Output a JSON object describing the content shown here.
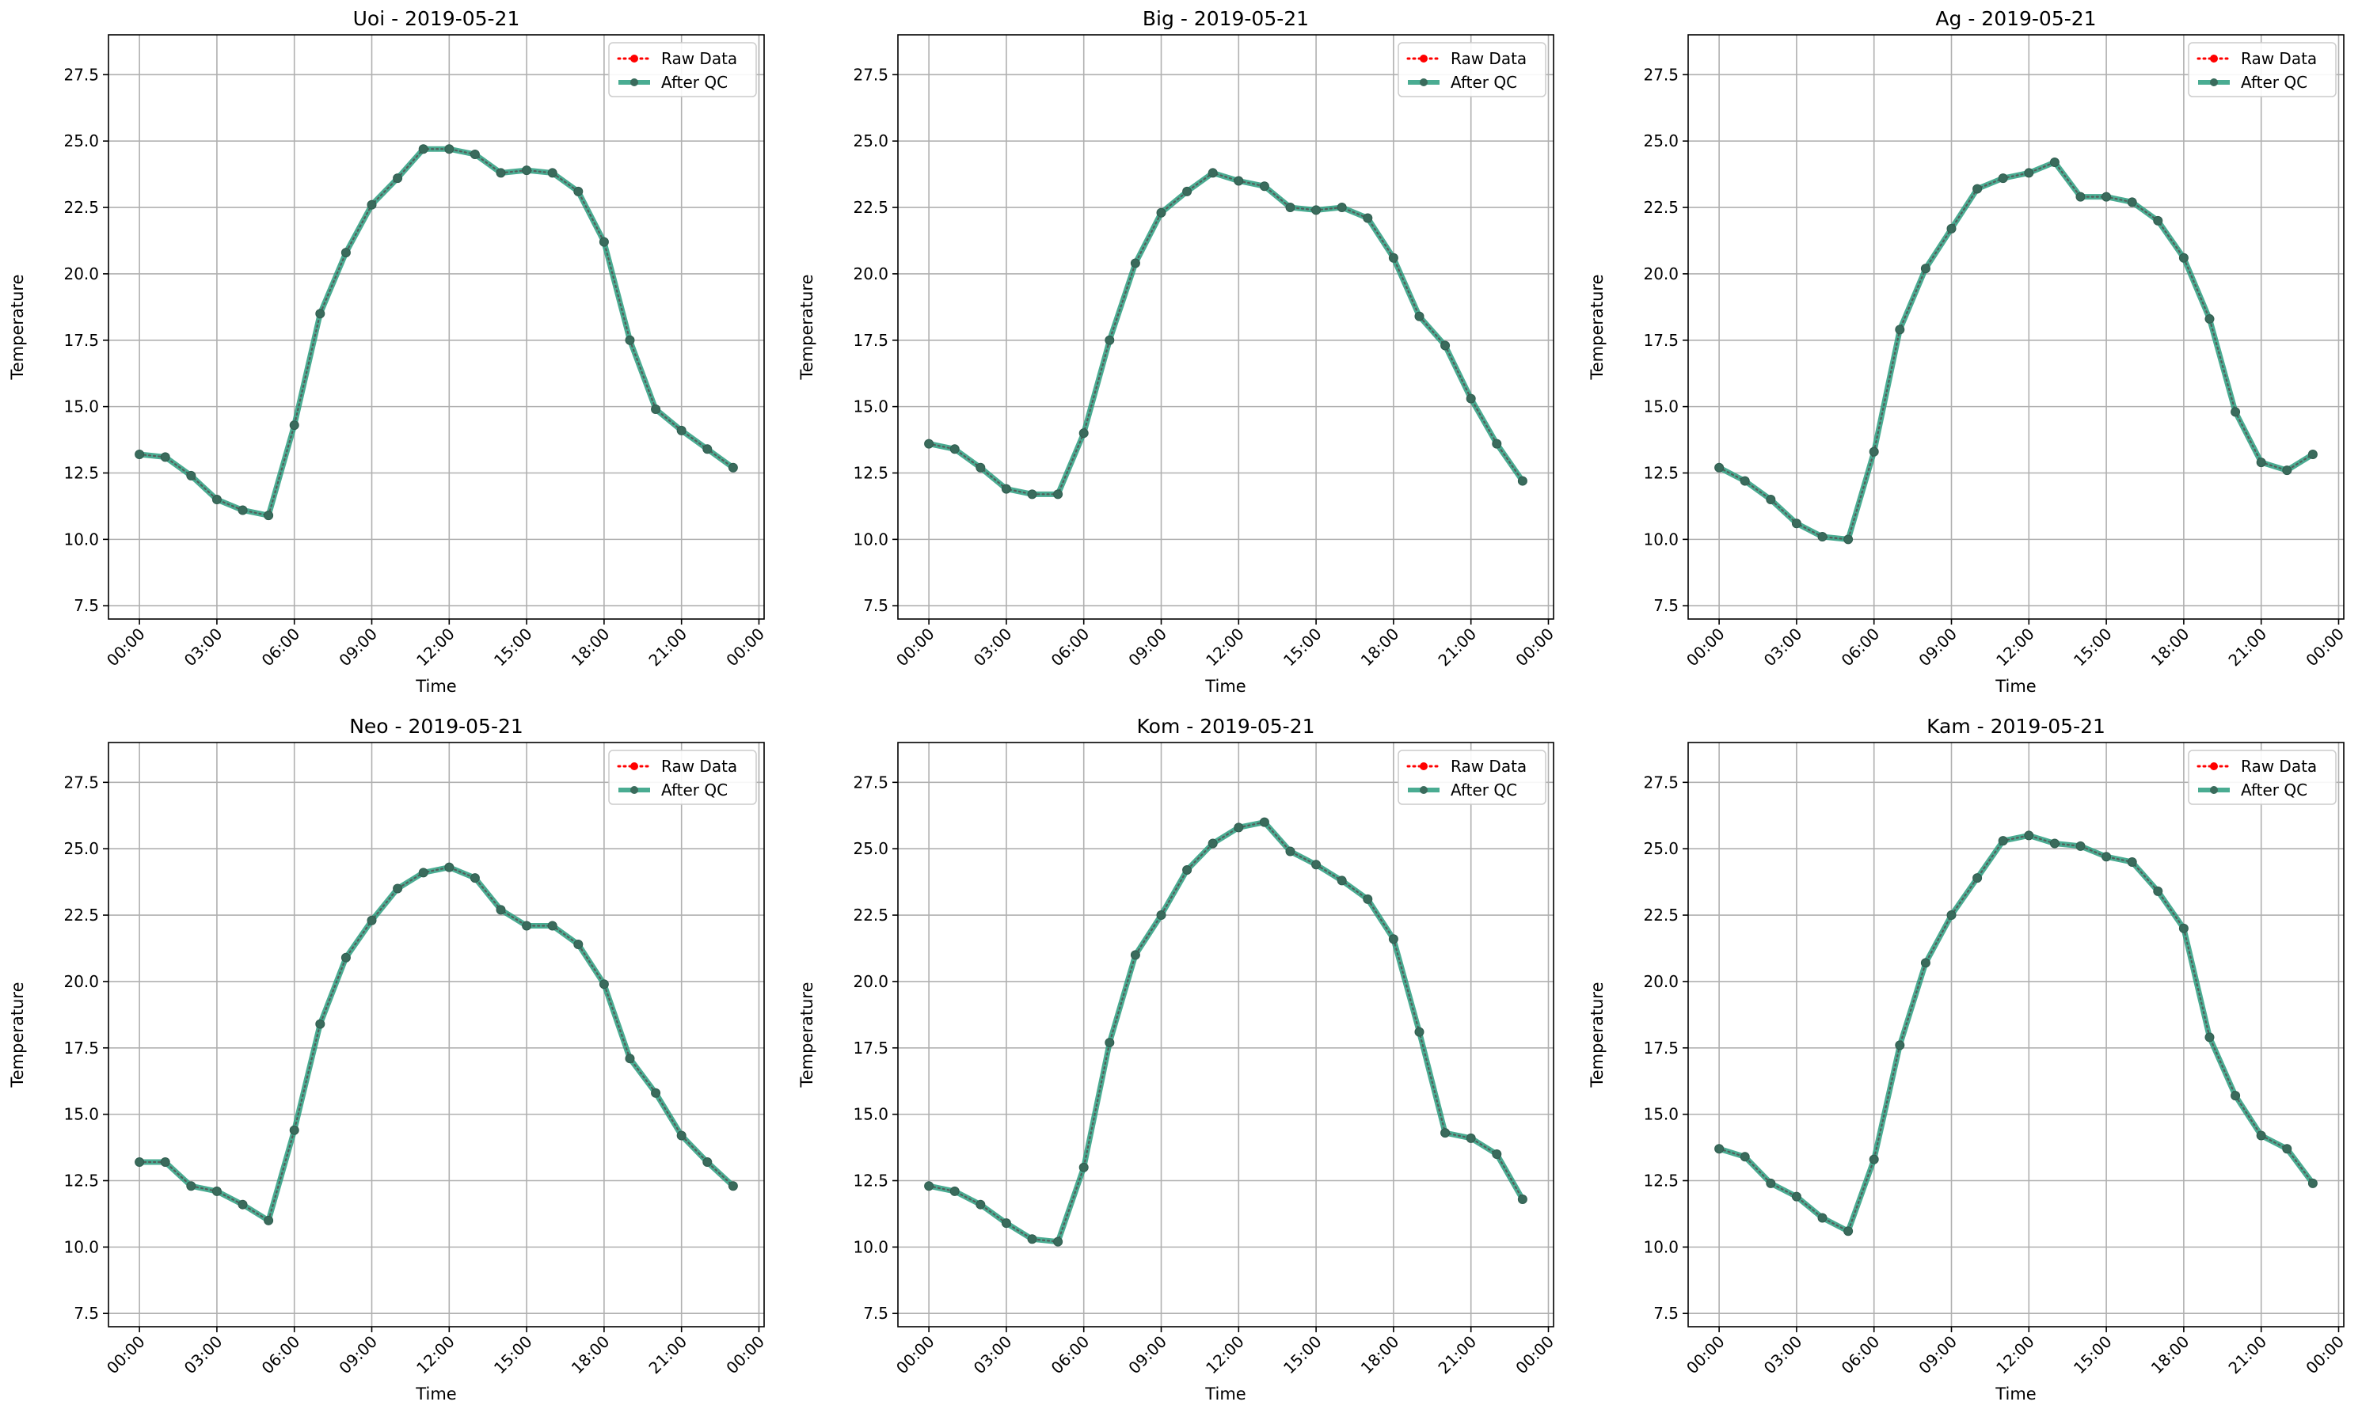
{
  "chart_data": [
    {
      "type": "line",
      "title": "Uoi - 2019-05-21",
      "xlabel": "Time",
      "ylabel": "Temperature",
      "xlim": [
        -1.2,
        24.2
      ],
      "ylim": [
        7.0,
        29.0
      ],
      "x": [
        0,
        1,
        2,
        3,
        4,
        5,
        6,
        7,
        8,
        9,
        10,
        11,
        12,
        13,
        14,
        15,
        16,
        17,
        18,
        19,
        20,
        21,
        22,
        23
      ],
      "x_ticks": [
        "00:00",
        "03:00",
        "06:00",
        "09:00",
        "12:00",
        "15:00",
        "18:00",
        "21:00",
        "00:00"
      ],
      "y_ticks": [
        "7.5",
        "10.0",
        "12.5",
        "15.0",
        "17.5",
        "20.0",
        "22.5",
        "25.0",
        "27.5"
      ],
      "grid": true,
      "legend": "top-right",
      "series": [
        {
          "name": "Raw Data",
          "color": "#ff0000",
          "style": "dotted-marker",
          "values": [
            13.2,
            13.1,
            12.4,
            11.5,
            11.1,
            10.9,
            14.3,
            18.5,
            20.8,
            22.6,
            23.6,
            24.7,
            24.7,
            24.5,
            23.8,
            23.9,
            23.8,
            23.1,
            21.2,
            17.5,
            14.9,
            14.1,
            13.4,
            12.7
          ]
        },
        {
          "name": "After QC",
          "color": "#2a9d7f",
          "style": "solid-marker",
          "values": [
            13.2,
            13.1,
            12.4,
            11.5,
            11.1,
            10.9,
            14.3,
            18.5,
            20.8,
            22.6,
            23.6,
            24.7,
            24.7,
            24.5,
            23.8,
            23.9,
            23.8,
            23.1,
            21.2,
            17.5,
            14.9,
            14.1,
            13.4,
            12.7
          ]
        }
      ]
    },
    {
      "type": "line",
      "title": "Big - 2019-05-21",
      "xlabel": "Time",
      "ylabel": "Temperature",
      "xlim": [
        -1.2,
        24.2
      ],
      "ylim": [
        7.0,
        29.0
      ],
      "x": [
        0,
        1,
        2,
        3,
        4,
        5,
        6,
        7,
        8,
        9,
        10,
        11,
        12,
        13,
        14,
        15,
        16,
        17,
        18,
        19,
        20,
        21,
        22,
        23
      ],
      "x_ticks": [
        "00:00",
        "03:00",
        "06:00",
        "09:00",
        "12:00",
        "15:00",
        "18:00",
        "21:00",
        "00:00"
      ],
      "y_ticks": [
        "7.5",
        "10.0",
        "12.5",
        "15.0",
        "17.5",
        "20.0",
        "22.5",
        "25.0",
        "27.5"
      ],
      "grid": true,
      "legend": "top-right",
      "series": [
        {
          "name": "Raw Data",
          "color": "#ff0000",
          "style": "dotted-marker",
          "values": [
            13.6,
            13.4,
            12.7,
            11.9,
            11.7,
            11.7,
            14.0,
            17.5,
            20.4,
            22.3,
            23.1,
            23.8,
            23.5,
            23.3,
            22.5,
            22.4,
            22.5,
            22.1,
            20.6,
            18.4,
            17.3,
            15.3,
            13.6,
            12.2
          ]
        },
        {
          "name": "After QC",
          "color": "#2a9d7f",
          "style": "solid-marker",
          "values": [
            13.6,
            13.4,
            12.7,
            11.9,
            11.7,
            11.7,
            14.0,
            17.5,
            20.4,
            22.3,
            23.1,
            23.8,
            23.5,
            23.3,
            22.5,
            22.4,
            22.5,
            22.1,
            20.6,
            18.4,
            17.3,
            15.3,
            13.6,
            12.2
          ]
        }
      ]
    },
    {
      "type": "line",
      "title": "Ag - 2019-05-21",
      "xlabel": "Time",
      "ylabel": "Temperature",
      "xlim": [
        -1.2,
        24.2
      ],
      "ylim": [
        7.0,
        29.0
      ],
      "x": [
        0,
        1,
        2,
        3,
        4,
        5,
        6,
        7,
        8,
        9,
        10,
        11,
        12,
        13,
        14,
        15,
        16,
        17,
        18,
        19,
        20,
        21,
        22,
        23
      ],
      "x_ticks": [
        "00:00",
        "03:00",
        "06:00",
        "09:00",
        "12:00",
        "15:00",
        "18:00",
        "21:00",
        "00:00"
      ],
      "y_ticks": [
        "7.5",
        "10.0",
        "12.5",
        "15.0",
        "17.5",
        "20.0",
        "22.5",
        "25.0",
        "27.5"
      ],
      "grid": true,
      "legend": "top-right",
      "series": [
        {
          "name": "Raw Data",
          "color": "#ff0000",
          "style": "dotted-marker",
          "values": [
            12.7,
            12.2,
            11.5,
            10.6,
            10.1,
            10.0,
            13.3,
            17.9,
            20.2,
            21.7,
            23.2,
            23.6,
            23.8,
            24.2,
            22.9,
            22.9,
            22.7,
            22.0,
            20.6,
            18.3,
            14.8,
            12.9,
            12.6,
            13.2
          ]
        },
        {
          "name": "After QC",
          "color": "#2a9d7f",
          "style": "solid-marker",
          "values": [
            12.7,
            12.2,
            11.5,
            10.6,
            10.1,
            10.0,
            13.3,
            17.9,
            20.2,
            21.7,
            23.2,
            23.6,
            23.8,
            24.2,
            22.9,
            22.9,
            22.7,
            22.0,
            20.6,
            18.3,
            14.8,
            12.9,
            12.6,
            13.2
          ]
        }
      ]
    },
    {
      "type": "line",
      "title": "Neo - 2019-05-21",
      "xlabel": "Time",
      "ylabel": "Temperature",
      "xlim": [
        -1.2,
        24.2
      ],
      "ylim": [
        7.0,
        29.0
      ],
      "x": [
        0,
        1,
        2,
        3,
        4,
        5,
        6,
        7,
        8,
        9,
        10,
        11,
        12,
        13,
        14,
        15,
        16,
        17,
        18,
        19,
        20,
        21,
        22,
        23
      ],
      "x_ticks": [
        "00:00",
        "03:00",
        "06:00",
        "09:00",
        "12:00",
        "15:00",
        "18:00",
        "21:00",
        "00:00"
      ],
      "y_ticks": [
        "7.5",
        "10.0",
        "12.5",
        "15.0",
        "17.5",
        "20.0",
        "22.5",
        "25.0",
        "27.5"
      ],
      "grid": true,
      "legend": "top-right",
      "series": [
        {
          "name": "Raw Data",
          "color": "#ff0000",
          "style": "dotted-marker",
          "values": [
            13.2,
            13.2,
            12.3,
            12.1,
            11.6,
            11.0,
            14.4,
            18.4,
            20.9,
            22.3,
            23.5,
            24.1,
            24.3,
            23.9,
            22.7,
            22.1,
            22.1,
            21.4,
            19.9,
            17.1,
            15.8,
            14.2,
            13.2,
            12.3
          ]
        },
        {
          "name": "After QC",
          "color": "#2a9d7f",
          "style": "solid-marker",
          "values": [
            13.2,
            13.2,
            12.3,
            12.1,
            11.6,
            11.0,
            14.4,
            18.4,
            20.9,
            22.3,
            23.5,
            24.1,
            24.3,
            23.9,
            22.7,
            22.1,
            22.1,
            21.4,
            19.9,
            17.1,
            15.8,
            14.2,
            13.2,
            12.3
          ]
        }
      ]
    },
    {
      "type": "line",
      "title": "Kom - 2019-05-21",
      "xlabel": "Time",
      "ylabel": "Temperature",
      "xlim": [
        -1.2,
        24.2
      ],
      "ylim": [
        7.0,
        29.0
      ],
      "x": [
        0,
        1,
        2,
        3,
        4,
        5,
        6,
        7,
        8,
        9,
        10,
        11,
        12,
        13,
        14,
        15,
        16,
        17,
        18,
        19,
        20,
        21,
        22,
        23
      ],
      "x_ticks": [
        "00:00",
        "03:00",
        "06:00",
        "09:00",
        "12:00",
        "15:00",
        "18:00",
        "21:00",
        "00:00"
      ],
      "y_ticks": [
        "7.5",
        "10.0",
        "12.5",
        "15.0",
        "17.5",
        "20.0",
        "22.5",
        "25.0",
        "27.5"
      ],
      "grid": true,
      "legend": "top-right",
      "series": [
        {
          "name": "Raw Data",
          "color": "#ff0000",
          "style": "dotted-marker",
          "values": [
            12.3,
            12.1,
            11.6,
            10.9,
            10.3,
            10.2,
            13.0,
            17.7,
            21.0,
            22.5,
            24.2,
            25.2,
            25.8,
            26.0,
            24.9,
            24.4,
            23.8,
            23.1,
            21.6,
            18.1,
            14.3,
            14.1,
            13.5,
            11.8
          ]
        },
        {
          "name": "After QC",
          "color": "#2a9d7f",
          "style": "solid-marker",
          "values": [
            12.3,
            12.1,
            11.6,
            10.9,
            10.3,
            10.2,
            13.0,
            17.7,
            21.0,
            22.5,
            24.2,
            25.2,
            25.8,
            26.0,
            24.9,
            24.4,
            23.8,
            23.1,
            21.6,
            18.1,
            14.3,
            14.1,
            13.5,
            11.8
          ]
        }
      ]
    },
    {
      "type": "line",
      "title": "Kam - 2019-05-21",
      "xlabel": "Time",
      "ylabel": "Temperature",
      "xlim": [
        -1.2,
        24.2
      ],
      "ylim": [
        7.0,
        29.0
      ],
      "x": [
        0,
        1,
        2,
        3,
        4,
        5,
        6,
        7,
        8,
        9,
        10,
        11,
        12,
        13,
        14,
        15,
        16,
        17,
        18,
        19,
        20,
        21,
        22,
        23
      ],
      "x_ticks": [
        "00:00",
        "03:00",
        "06:00",
        "09:00",
        "12:00",
        "15:00",
        "18:00",
        "21:00",
        "00:00"
      ],
      "y_ticks": [
        "7.5",
        "10.0",
        "12.5",
        "15.0",
        "17.5",
        "20.0",
        "22.5",
        "25.0",
        "27.5"
      ],
      "grid": true,
      "legend": "top-right",
      "series": [
        {
          "name": "Raw Data",
          "color": "#ff0000",
          "style": "dotted-marker",
          "values": [
            13.7,
            13.4,
            12.4,
            11.9,
            11.1,
            10.6,
            13.3,
            17.6,
            20.7,
            22.5,
            23.9,
            25.3,
            25.5,
            25.2,
            25.1,
            24.7,
            24.5,
            23.4,
            22.0,
            17.9,
            15.7,
            14.2,
            13.7,
            12.4
          ]
        },
        {
          "name": "After QC",
          "color": "#2a9d7f",
          "style": "solid-marker",
          "values": [
            13.7,
            13.4,
            12.4,
            11.9,
            11.1,
            10.6,
            13.3,
            17.6,
            20.7,
            22.5,
            23.9,
            25.3,
            25.5,
            25.2,
            25.1,
            24.7,
            24.5,
            23.4,
            22.0,
            17.9,
            15.7,
            14.2,
            13.7,
            12.4
          ]
        }
      ]
    }
  ]
}
